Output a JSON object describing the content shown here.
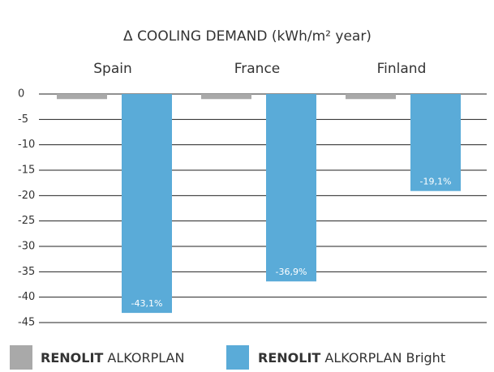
{
  "chart_data": {
    "type": "bar",
    "title": "Δ COOLING DEMAND (kWh/m² year)",
    "categories": [
      "Spain",
      "France",
      "Finland"
    ],
    "series": [
      {
        "name": "RENOLIT ALKORPLAN",
        "color": "#a9a9a9",
        "values": [
          -1,
          -1,
          -1
        ]
      },
      {
        "name": "RENOLIT ALKORPLAN Bright",
        "color": "#5aabd8",
        "values": [
          -43.1,
          -36.9,
          -19.1
        ],
        "value_labels": [
          "-43,1%",
          "-36,9%",
          "-19,1%"
        ]
      }
    ],
    "ylim": [
      -45,
      0
    ],
    "yticks": [
      0,
      -5,
      -10,
      -15,
      -20,
      -25,
      -30,
      -35,
      -40,
      -45
    ],
    "grid": true,
    "legend": "bottom"
  }
}
